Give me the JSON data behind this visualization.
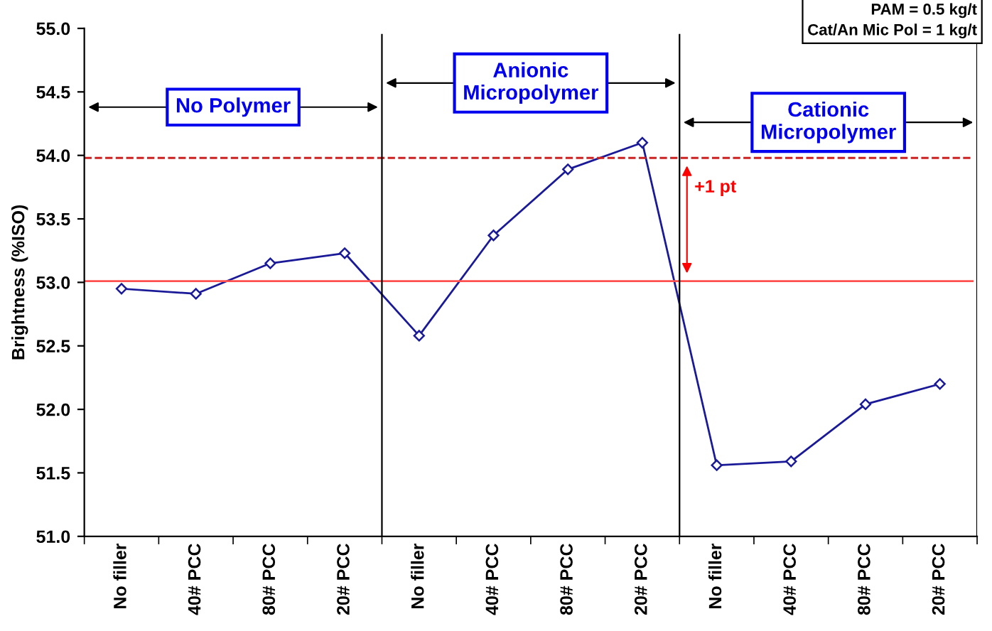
{
  "chart_data": {
    "type": "line",
    "ylabel": "Brightness (%ISO)",
    "categories": [
      "No filler",
      "40# PCC",
      "80# PCC",
      "20# PCC",
      "No filler",
      "40# PCC",
      "80# PCC",
      "20# PCC",
      "No filler",
      "40# PCC",
      "80# PCC",
      "20# PCC"
    ],
    "series": [
      {
        "color": "#1a1a99",
        "values": [
          52.95,
          52.91,
          53.15,
          53.23,
          52.58,
          53.37,
          53.89,
          54.1,
          51.56,
          51.59,
          52.04,
          52.2
        ]
      }
    ],
    "ylim": [
      51,
      55
    ],
    "yticks": [
      {
        "value": 51,
        "label": "51.0"
      },
      {
        "value": 51.5,
        "label": "51.5"
      },
      {
        "value": 52,
        "label": "52.0"
      },
      {
        "value": 52.5,
        "label": "52.5"
      },
      {
        "value": 53,
        "label": "53.0"
      },
      {
        "value": 53.5,
        "label": "53.5"
      },
      {
        "value": 54,
        "label": "54.0"
      },
      {
        "value": 54.5,
        "label": "54.5"
      },
      {
        "value": 55,
        "label": "55.0"
      }
    ],
    "ref_lines": [
      {
        "axis": "y",
        "value": 53.01,
        "color": "#ff5050",
        "line_style": "solid"
      },
      {
        "axis": "y",
        "value": 53.98,
        "color": "#cc2222",
        "line_style": "dashed"
      }
    ],
    "annotations": [
      "No Polymer",
      "Anionic\nMicropolymer",
      "Cationic\nMicropolymer",
      "+1 pt",
      "PAM = 0.5 kg/t\nCat/An Mic Pol = 1 kg/t"
    ],
    "marker": "diamond",
    "line_style": "solid",
    "grid": false,
    "legend": false
  }
}
